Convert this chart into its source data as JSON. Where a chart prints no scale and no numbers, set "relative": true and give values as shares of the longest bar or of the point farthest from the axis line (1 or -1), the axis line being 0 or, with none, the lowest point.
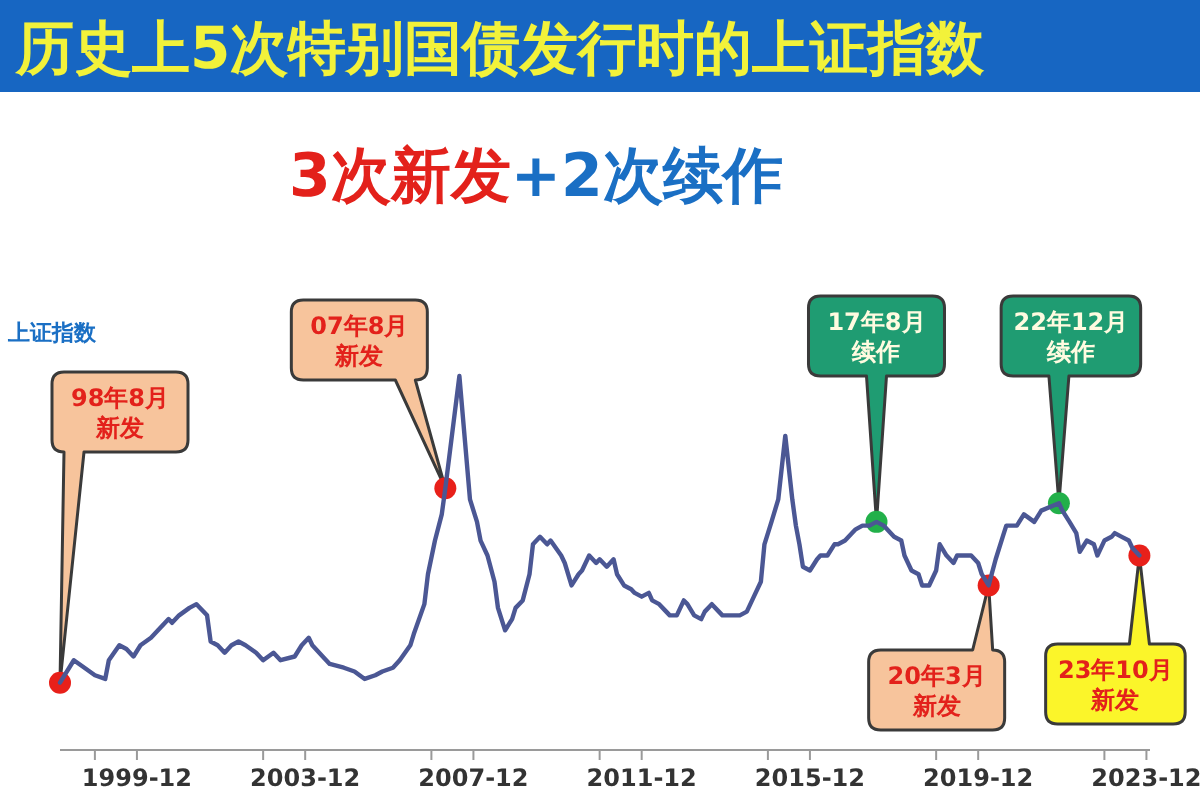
{
  "chart_data": {
    "type": "line",
    "title": "历史上5次特别国债发行时的上证指数",
    "subtitle": "3次新发+2次续作",
    "ylabel": "上证指数",
    "relative": true,
    "xlim": [
      "1998-02",
      "2024-01"
    ],
    "xticks": [
      {
        "value": "1998-12",
        "label": null
      },
      "1999-12",
      {
        "value": "2002-12",
        "label": null
      },
      "2003-12",
      {
        "value": "2006-12",
        "label": null
      },
      "2007-12",
      {
        "value": "2010-12",
        "label": null
      },
      "2011-12",
      {
        "value": "2014-12",
        "label": null
      },
      "2015-12",
      {
        "value": "2018-12",
        "label": null
      },
      "2019-12",
      {
        "value": "2022-12",
        "label": null
      },
      "2023-12"
    ],
    "series": [
      {
        "color": "#4b5794",
        "x": [
          "1998-02",
          "1998-06",
          "1998-09",
          "1998-12",
          "1999-03",
          "1999-04",
          "1999-07",
          "1999-09",
          "1999-11",
          "2000-01",
          "2000-04",
          "2000-06",
          "2000-09",
          "2000-10",
          "2000-12",
          "2001-03",
          "2001-05",
          "2001-08",
          "2001-09",
          "2001-11",
          "2002-01",
          "2002-03",
          "2002-05",
          "2002-07",
          "2002-10",
          "2002-12",
          "2003-03",
          "2003-05",
          "2003-09",
          "2003-11",
          "2004-01",
          "2004-02",
          "2004-05",
          "2004-07",
          "2004-11",
          "2005-02",
          "2005-05",
          "2005-08",
          "2005-10",
          "2006-01",
          "2006-03",
          "2006-06",
          "2006-07",
          "2006-10",
          "2006-11",
          "2007-01",
          "2007-03",
          "2007-04",
          "2007-08",
          "2007-11",
          "2008-01",
          "2008-02",
          "2008-04",
          "2008-06",
          "2008-07",
          "2008-09",
          "2008-11",
          "2008-12",
          "2009-02",
          "2009-04",
          "2009-05",
          "2009-07",
          "2009-09",
          "2009-10",
          "2010-01",
          "2010-02",
          "2010-04",
          "2010-06",
          "2010-07",
          "2010-09",
          "2010-11",
          "2010-12",
          "2011-02",
          "2011-04",
          "2011-05",
          "2011-07",
          "2011-09",
          "2011-10",
          "2011-12",
          "2012-02",
          "2012-03",
          "2012-05",
          "2012-07",
          "2012-08",
          "2012-10",
          "2012-12",
          "2013-01",
          "2013-03",
          "2013-05",
          "2013-06",
          "2013-08",
          "2013-10",
          "2013-11",
          "2014-01",
          "2014-03",
          "2014-04",
          "2014-06",
          "2014-08",
          "2014-10",
          "2014-11",
          "2015-01",
          "2015-03",
          "2015-05",
          "2015-07",
          "2015-08",
          "2015-09",
          "2015-10",
          "2015-12",
          "2016-02",
          "2016-03",
          "2016-05",
          "2016-07",
          "2016-08",
          "2016-10",
          "2016-12",
          "2017-01",
          "2017-03",
          "2017-05",
          "2017-07",
          "2017-09",
          "2017-10",
          "2017-12",
          "2018-02",
          "2018-03",
          "2018-05",
          "2018-07",
          "2018-08",
          "2018-10",
          "2018-12",
          "2019-01",
          "2019-03",
          "2019-05",
          "2019-06",
          "2019-08",
          "2019-10",
          "2019-12",
          "2020-01",
          "2020-03",
          "2020-05",
          "2020-07",
          "2020-08",
          "2020-11",
          "2021-01",
          "2021-04",
          "2021-06",
          "2021-11",
          "2021-12",
          "2022-02",
          "2022-04",
          "2022-05",
          "2022-07",
          "2022-09",
          "2022-10",
          "2022-12",
          "2023-02",
          "2023-03",
          "2023-05",
          "2023-07",
          "2023-08",
          "2023-10"
        ],
        "values": [
          0.18,
          0.24,
          0.22,
          0.2,
          0.19,
          0.24,
          0.28,
          0.27,
          0.25,
          0.28,
          0.3,
          0.32,
          0.35,
          0.34,
          0.36,
          0.38,
          0.39,
          0.36,
          0.29,
          0.28,
          0.26,
          0.28,
          0.29,
          0.28,
          0.26,
          0.24,
          0.26,
          0.24,
          0.25,
          0.28,
          0.3,
          0.28,
          0.25,
          0.23,
          0.22,
          0.21,
          0.19,
          0.2,
          0.21,
          0.22,
          0.24,
          0.28,
          0.31,
          0.39,
          0.47,
          0.56,
          0.63,
          0.7,
          1.0,
          0.67,
          0.61,
          0.56,
          0.52,
          0.45,
          0.38,
          0.32,
          0.35,
          0.38,
          0.4,
          0.47,
          0.55,
          0.57,
          0.55,
          0.56,
          0.52,
          0.5,
          0.44,
          0.47,
          0.48,
          0.52,
          0.5,
          0.51,
          0.49,
          0.51,
          0.47,
          0.44,
          0.43,
          0.42,
          0.41,
          0.42,
          0.4,
          0.39,
          0.37,
          0.36,
          0.36,
          0.4,
          0.39,
          0.36,
          0.35,
          0.37,
          0.39,
          0.37,
          0.36,
          0.36,
          0.36,
          0.36,
          0.37,
          0.41,
          0.45,
          0.55,
          0.61,
          0.67,
          0.84,
          0.67,
          0.6,
          0.55,
          0.49,
          0.48,
          0.51,
          0.52,
          0.52,
          0.55,
          0.55,
          0.56,
          0.58,
          0.59,
          0.6,
          0.6,
          0.61,
          0.6,
          0.59,
          0.57,
          0.56,
          0.52,
          0.48,
          0.47,
          0.44,
          0.44,
          0.48,
          0.55,
          0.52,
          0.5,
          0.52,
          0.52,
          0.52,
          0.5,
          0.47,
          0.44,
          0.51,
          0.57,
          0.6,
          0.6,
          0.63,
          0.61,
          0.64,
          0.66,
          0.64,
          0.61,
          0.58,
          0.53,
          0.56,
          0.55,
          0.52,
          0.56,
          0.57,
          0.58,
          0.57,
          0.56,
          0.54,
          0.52
        ]
      },
      {
        "type": "scatter",
        "x": [
          "1998-02",
          "2007-04",
          "2017-07",
          "2020-03",
          "2021-11",
          "2023-10"
        ],
        "values": [
          0.18,
          0.7,
          0.61,
          0.44,
          0.66,
          0.52
        ],
        "colors": [
          "#e8201a",
          "#e8201a",
          "#22b04a",
          "#e8201a",
          "#22b04a",
          "#e8201a"
        ]
      }
    ],
    "annotations": [
      "98年8月新发",
      "07年8月新发",
      "17年8月续作",
      "20年3月新发",
      "22年12月续作",
      "23年10月新发"
    ]
  }
}
